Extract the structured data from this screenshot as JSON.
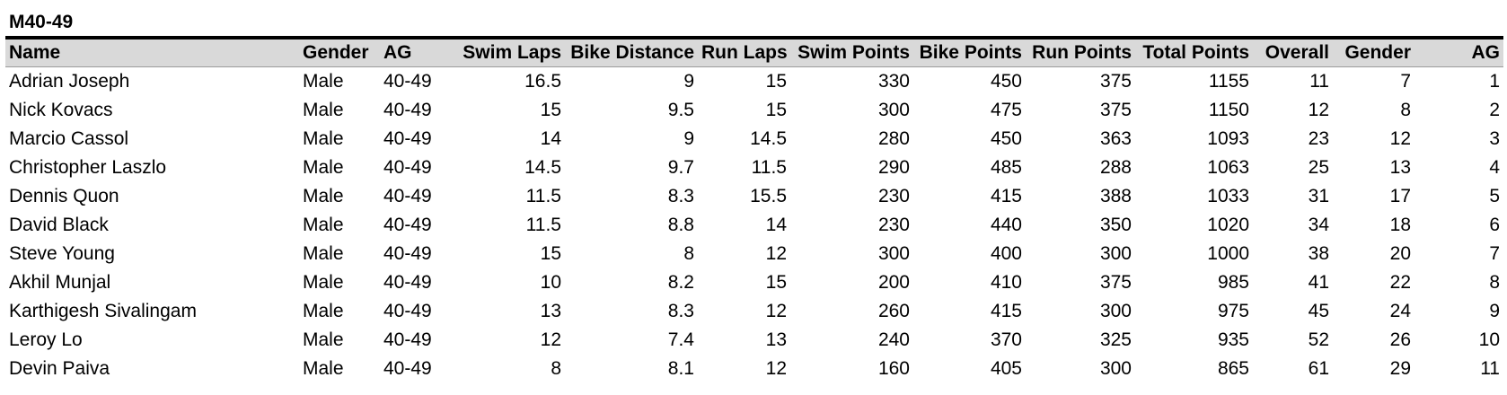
{
  "section": {
    "title": "M40-49"
  },
  "table": {
    "columns": [
      "Name",
      "Gender",
      "AG",
      "Swim Laps",
      "Bike Distance",
      "Run Laps",
      "Swim Points",
      "Bike Points",
      "Run Points",
      "Total Points",
      "Overall",
      "Gender",
      "AG"
    ],
    "rows": [
      [
        "Adrian Joseph",
        "Male",
        "40-49",
        "16.5",
        "9",
        "15",
        "330",
        "450",
        "375",
        "1155",
        "11",
        "7",
        "1"
      ],
      [
        "Nick Kovacs",
        "Male",
        "40-49",
        "15",
        "9.5",
        "15",
        "300",
        "475",
        "375",
        "1150",
        "12",
        "8",
        "2"
      ],
      [
        "Marcio Cassol",
        "Male",
        "40-49",
        "14",
        "9",
        "14.5",
        "280",
        "450",
        "363",
        "1093",
        "23",
        "12",
        "3"
      ],
      [
        "Christopher Laszlo",
        "Male",
        "40-49",
        "14.5",
        "9.7",
        "11.5",
        "290",
        "485",
        "288",
        "1063",
        "25",
        "13",
        "4"
      ],
      [
        "Dennis Quon",
        "Male",
        "40-49",
        "11.5",
        "8.3",
        "15.5",
        "230",
        "415",
        "388",
        "1033",
        "31",
        "17",
        "5"
      ],
      [
        "David Black",
        "Male",
        "40-49",
        "11.5",
        "8.8",
        "14",
        "230",
        "440",
        "350",
        "1020",
        "34",
        "18",
        "6"
      ],
      [
        "Steve Young",
        "Male",
        "40-49",
        "15",
        "8",
        "12",
        "300",
        "400",
        "300",
        "1000",
        "38",
        "20",
        "7"
      ],
      [
        "Akhil Munjal",
        "Male",
        "40-49",
        "10",
        "8.2",
        "15",
        "200",
        "410",
        "375",
        "985",
        "41",
        "22",
        "8"
      ],
      [
        "Karthigesh Sivalingam",
        "Male",
        "40-49",
        "13",
        "8.3",
        "12",
        "260",
        "415",
        "300",
        "975",
        "45",
        "24",
        "9"
      ],
      [
        "Leroy Lo",
        "Male",
        "40-49",
        "12",
        "7.4",
        "13",
        "240",
        "370",
        "325",
        "935",
        "52",
        "26",
        "10"
      ],
      [
        "Devin Paiva",
        "Male",
        "40-49",
        "8",
        "8.1",
        "12",
        "160",
        "405",
        "300",
        "865",
        "61",
        "29",
        "11"
      ]
    ]
  }
}
